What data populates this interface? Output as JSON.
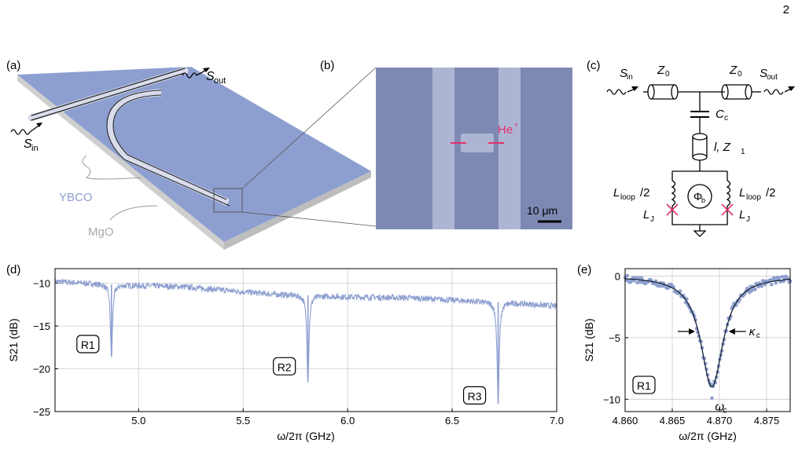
{
  "page_number": "2",
  "panels": {
    "a": {
      "label": "(a)",
      "s_in": "S",
      "s_in_sub": "in",
      "s_out": "S",
      "s_out_sub": "out",
      "ybco": "YBCO",
      "mgo": "MgO"
    },
    "b": {
      "label": "(b)",
      "he": "He",
      "he_sup": "+",
      "scale": "10 μm"
    },
    "c": {
      "label": "(c)",
      "s_in": "S",
      "s_in_sub": "in",
      "s_out": "S",
      "s_out_sub": "out",
      "z0": "Z",
      "z0_sub": "0",
      "cc": "C",
      "cc_sub": "c",
      "iz1_pre": "l, Z",
      "iz1_sub": "1",
      "lloop": "L",
      "lloop_sub": "loop",
      "lloop_suffix": "/2",
      "phi": "Φ",
      "phi_sub": "b",
      "lj": "L",
      "lj_sub": "J"
    },
    "d": {
      "label": "(d)"
    },
    "e": {
      "label": "(e)"
    }
  },
  "colors": {
    "trace": "#8d9fd0",
    "substrate": "#8d9fd0",
    "mgo": "#bdbdbd",
    "accent": "#e0326a",
    "grid": "#cccccc",
    "fit": "#1a2233"
  },
  "chart_data": [
    {
      "type": "line",
      "panel": "d",
      "xlabel": "ω/2π (GHz)",
      "ylabel": "S21 (dB)",
      "xlim": [
        4.6,
        7.0
      ],
      "ylim": [
        -25,
        -8.3
      ],
      "xticks": [
        5.0,
        5.5,
        6.0,
        6.5,
        7.0
      ],
      "xtick_labels": [
        "5.0",
        "5.5",
        "6.0",
        "6.5",
        "7.0"
      ],
      "yticks": [
        -10,
        -15,
        -20,
        -25
      ],
      "ytick_labels": [
        "−10",
        "−15",
        "−20",
        "−25"
      ],
      "baseline": [
        [
          4.6,
          -9.8
        ],
        [
          4.9,
          -10.2
        ],
        [
          5.2,
          -10.4
        ],
        [
          5.5,
          -11.0
        ],
        [
          5.65,
          -11.3
        ],
        [
          5.8,
          -11.4
        ],
        [
          6.0,
          -11.6
        ],
        [
          6.3,
          -11.7
        ],
        [
          6.6,
          -12.1
        ],
        [
          6.8,
          -12.3
        ],
        [
          7.0,
          -12.7
        ]
      ],
      "resonances": [
        {
          "name": "R1",
          "f": 4.87,
          "depth": -18.6
        },
        {
          "name": "R2",
          "f": 5.81,
          "depth": -21.3
        },
        {
          "name": "R3",
          "f": 6.72,
          "depth": -24.0
        }
      ],
      "grid": true
    },
    {
      "type": "scatter",
      "panel": "e",
      "xlabel": "ω/2π (GHz)",
      "ylabel": "S21 (dB)",
      "xlim": [
        4.86,
        4.8775
      ],
      "ylim": [
        -11,
        0.6
      ],
      "xticks": [
        4.86,
        4.865,
        4.87,
        4.875
      ],
      "xtick_labels": [
        "4.860",
        "4.865",
        "4.870",
        "4.875"
      ],
      "yticks": [
        0,
        -5,
        -10
      ],
      "ytick_labels": [
        "0",
        "−5",
        "−10"
      ],
      "fit": {
        "f0": 4.8692,
        "depth": -9.0,
        "half_width": 0.00145
      },
      "annotations": {
        "tag": "R1",
        "omega": "ω",
        "omega_sub": "c",
        "kappa": "κ",
        "kappa_sub": "c"
      },
      "grid": true
    }
  ]
}
